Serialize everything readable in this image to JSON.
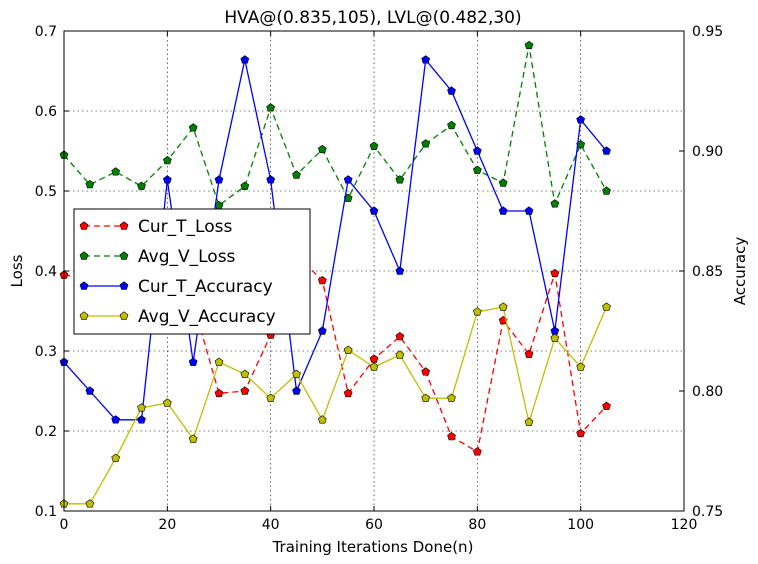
{
  "chart_data": {
    "type": "line",
    "title": "HVA@(0.835,105), LVL@(0.482,30)",
    "xlabel": "Training Iterations Done(n)",
    "ylabel_left": "Loss",
    "ylabel_right": "Accuracy",
    "xlim": [
      0,
      120
    ],
    "ylim_left": [
      0.1,
      0.7
    ],
    "ylim_right": [
      0.75,
      0.95
    ],
    "x_ticks": [
      "0",
      "20",
      "40",
      "60",
      "80",
      "100",
      "120"
    ],
    "y_left_ticks": [
      "0.1",
      "0.2",
      "0.3",
      "0.4",
      "0.5",
      "0.6",
      "0.7"
    ],
    "y_right_ticks": [
      "0.75",
      "0.80",
      "0.85",
      "0.90",
      "0.95"
    ],
    "grid": true,
    "legend_position": "center-left",
    "x": [
      0,
      5,
      10,
      15,
      20,
      25,
      30,
      35,
      40,
      45,
      50,
      55,
      60,
      65,
      70,
      75,
      80,
      85,
      90,
      95,
      100,
      105
    ],
    "series": [
      {
        "name": "Cur_T_Loss",
        "axis": "left",
        "color": "#ff0000",
        "line_style": "dashed",
        "values": [
          0.395,
          0.39,
          0.38,
          0.375,
          0.37,
          0.36,
          0.247,
          0.25,
          0.32,
          0.42,
          0.388,
          0.247,
          0.29,
          0.318,
          0.274,
          0.193,
          0.174,
          0.338,
          0.296,
          0.397,
          0.197,
          0.231
        ]
      },
      {
        "name": "Avg_V_Loss",
        "axis": "left",
        "color": "#008000",
        "line_style": "dashed",
        "values": [
          0.545,
          0.508,
          0.524,
          0.506,
          0.538,
          0.579,
          0.482,
          0.506,
          0.604,
          0.52,
          0.552,
          0.491,
          0.556,
          0.514,
          0.559,
          0.582,
          0.526,
          0.51,
          0.682,
          0.484,
          0.558,
          0.5
        ]
      },
      {
        "name": "Cur_T_Accuracy",
        "axis": "right",
        "color": "#0000ff",
        "line_style": "solid",
        "values": [
          0.812,
          0.8,
          0.788,
          0.788,
          0.888,
          0.812,
          0.888,
          0.938,
          0.888,
          0.8,
          0.825,
          0.888,
          0.875,
          0.85,
          0.938,
          0.925,
          0.9,
          0.875,
          0.875,
          0.825,
          0.913,
          0.9
        ]
      },
      {
        "name": "Avg_V_Accuracy",
        "axis": "right",
        "color": "#bfbf00",
        "line_style": "solid",
        "values": [
          0.753,
          0.753,
          0.772,
          0.793,
          0.795,
          0.78,
          0.812,
          0.807,
          0.797,
          0.807,
          0.788,
          0.817,
          0.81,
          0.815,
          0.797,
          0.797,
          0.833,
          0.835,
          0.787,
          0.822,
          0.81,
          0.835
        ]
      }
    ]
  }
}
